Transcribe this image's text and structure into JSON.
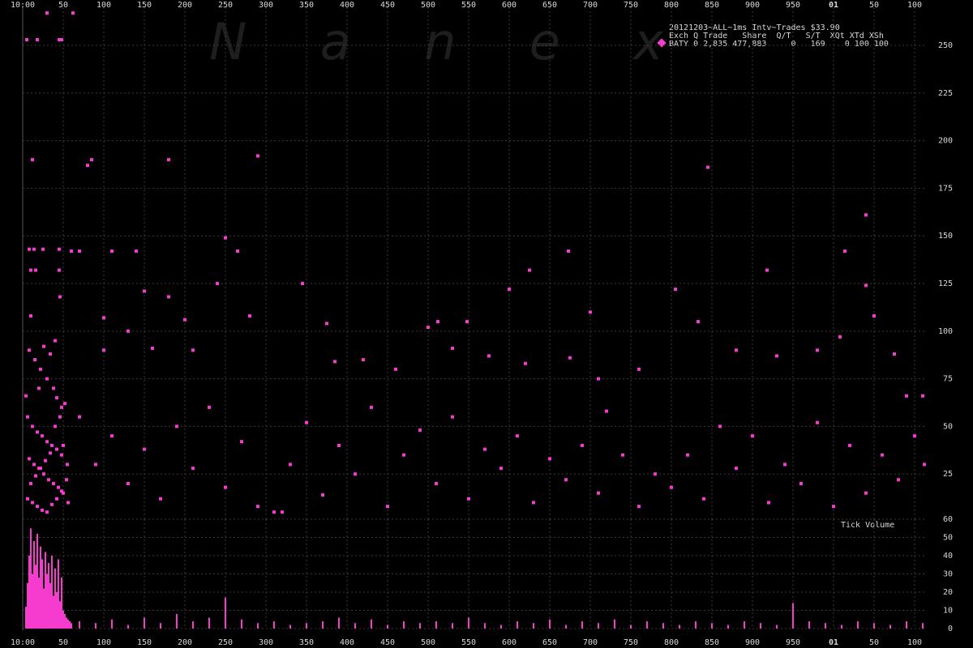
{
  "watermark": "N a n e x",
  "chart_data": [
    {
      "type": "scatter",
      "title": "20121203~ALL~1ms Intv~Trades $33.90",
      "legend_header": "Exch Q Trade   Share  Q/T   S/T  XQt XTd XSh",
      "legend_row": "BATY 0 2,835 477,883     0   169    0 100 100",
      "color": "#f53ccf",
      "grid": true,
      "xlim": [
        0,
        1115
      ],
      "xticks": [
        {
          "value": 0,
          "label": "10:00"
        },
        50,
        100,
        150,
        200,
        250,
        300,
        350,
        400,
        450,
        500,
        550,
        600,
        650,
        700,
        750,
        800,
        850,
        900,
        950,
        {
          "value": 1000,
          "label": "01"
        },
        {
          "value": 1050,
          "label": "50"
        },
        {
          "value": 1100,
          "label": "100"
        }
      ],
      "ylim": [
        0,
        270
      ],
      "yticks": [
        25,
        50,
        75,
        100,
        125,
        150,
        175,
        200,
        225,
        250
      ],
      "x": [
        5,
        18,
        45,
        48,
        12,
        30,
        62,
        8,
        14,
        25,
        45,
        10,
        16,
        45,
        10,
        46,
        8,
        15,
        22,
        30,
        38,
        42,
        48,
        6,
        12,
        18,
        24,
        30,
        36,
        42,
        48,
        8,
        14,
        20,
        26,
        32,
        38,
        44,
        50,
        6,
        12,
        18,
        24,
        30,
        36,
        42,
        48,
        10,
        16,
        22,
        28,
        34,
        40,
        46,
        52,
        4,
        20,
        26,
        34,
        40,
        50,
        55,
        54,
        56,
        80,
        85,
        180,
        290,
        845,
        1040,
        60,
        70,
        110,
        140,
        250,
        265,
        625,
        673,
        918,
        1014,
        150,
        180,
        240,
        345,
        600,
        805,
        1040,
        1050,
        100,
        130,
        200,
        280,
        375,
        500,
        512,
        548,
        700,
        833,
        1008,
        100,
        160,
        210,
        385,
        420,
        460,
        530,
        575,
        620,
        675,
        710,
        760,
        880,
        930,
        980,
        1075,
        1090,
        1110,
        70,
        90,
        110,
        130,
        150,
        170,
        190,
        210,
        230,
        250,
        270,
        290,
        310,
        320,
        330,
        350,
        370,
        390,
        410,
        430,
        450,
        470,
        490,
        510,
        530,
        550,
        570,
        590,
        610,
        630,
        650,
        670,
        690,
        710,
        720,
        740,
        760,
        780,
        800,
        820,
        840,
        860,
        880,
        900,
        920,
        940,
        960,
        980,
        1000,
        1020,
        1040,
        1060,
        1080,
        1100,
        1112
      ],
      "values": [
        253,
        253,
        253,
        253,
        190,
        267,
        267,
        143,
        143,
        143,
        143,
        132,
        132,
        132,
        108,
        118,
        90,
        85,
        80,
        75,
        70,
        65,
        60,
        55,
        50,
        47,
        45,
        42,
        40,
        38,
        35,
        33,
        30,
        28,
        25,
        22,
        20,
        18,
        15,
        12,
        10,
        8,
        6,
        5,
        9,
        12,
        16,
        20,
        24,
        28,
        32,
        36,
        50,
        55,
        62,
        66,
        70,
        92,
        88,
        95,
        40,
        30,
        22,
        10,
        187,
        190,
        190,
        192,
        186,
        161,
        142,
        142,
        142,
        142,
        149,
        142,
        132,
        142,
        132,
        142,
        121,
        118,
        125,
        125,
        122,
        122,
        124,
        108,
        107,
        100,
        106,
        108,
        104,
        102,
        105,
        105,
        110,
        105,
        97,
        90,
        91,
        90,
        84,
        85,
        80,
        91,
        87,
        83,
        86,
        75,
        80,
        90,
        87,
        90,
        88,
        66,
        66,
        55,
        30,
        45,
        20,
        38,
        12,
        50,
        28,
        60,
        18,
        42,
        8,
        5,
        5,
        30,
        52,
        14,
        40,
        25,
        60,
        8,
        35,
        48,
        20,
        55,
        12,
        38,
        28,
        45,
        10,
        33,
        22,
        40,
        15,
        58,
        35,
        8,
        25,
        18,
        35,
        12,
        50,
        28,
        45,
        10,
        30,
        20,
        52,
        8,
        40,
        15,
        35,
        22,
        45,
        30
      ]
    },
    {
      "type": "bar",
      "title": "Tick Volume",
      "color": "#f53ccf",
      "grid": true,
      "xlim": [
        0,
        1115
      ],
      "xticks": [
        {
          "value": 0,
          "label": "10:00"
        },
        50,
        100,
        150,
        200,
        250,
        300,
        350,
        400,
        450,
        500,
        550,
        600,
        650,
        700,
        750,
        800,
        850,
        900,
        950,
        {
          "value": 1000,
          "label": "01"
        },
        {
          "value": 1050,
          "label": "50"
        },
        {
          "value": 1100,
          "label": "100"
        }
      ],
      "ylim": [
        0,
        60
      ],
      "yticks": [
        0,
        10,
        20,
        30,
        40,
        50,
        60
      ],
      "x": [
        4,
        6,
        8,
        10,
        12,
        14,
        16,
        18,
        20,
        22,
        24,
        26,
        28,
        30,
        32,
        34,
        36,
        38,
        40,
        42,
        44,
        46,
        48,
        50,
        52,
        54,
        56,
        58,
        60,
        70,
        90,
        110,
        130,
        150,
        170,
        190,
        210,
        230,
        250,
        270,
        290,
        310,
        330,
        350,
        370,
        390,
        410,
        430,
        450,
        470,
        490,
        510,
        530,
        550,
        570,
        590,
        610,
        630,
        650,
        670,
        690,
        710,
        730,
        750,
        770,
        790,
        810,
        830,
        850,
        870,
        890,
        910,
        930,
        950,
        970,
        990,
        1010,
        1030,
        1050,
        1070,
        1090,
        1110
      ],
      "values": [
        12,
        25,
        40,
        55,
        30,
        48,
        35,
        52,
        28,
        45,
        38,
        22,
        42,
        30,
        36,
        25,
        40,
        18,
        33,
        20,
        38,
        15,
        28,
        10,
        8,
        6,
        5,
        4,
        3,
        4,
        3,
        5,
        2,
        6,
        3,
        8,
        4,
        6,
        17,
        5,
        3,
        4,
        2,
        3,
        4,
        6,
        3,
        5,
        2,
        4,
        3,
        4,
        3,
        6,
        3,
        2,
        4,
        3,
        5,
        2,
        4,
        3,
        5,
        2,
        4,
        3,
        2,
        4,
        3,
        2,
        4,
        3,
        2,
        14,
        4,
        3,
        2,
        4,
        3,
        2,
        4,
        3
      ]
    }
  ]
}
